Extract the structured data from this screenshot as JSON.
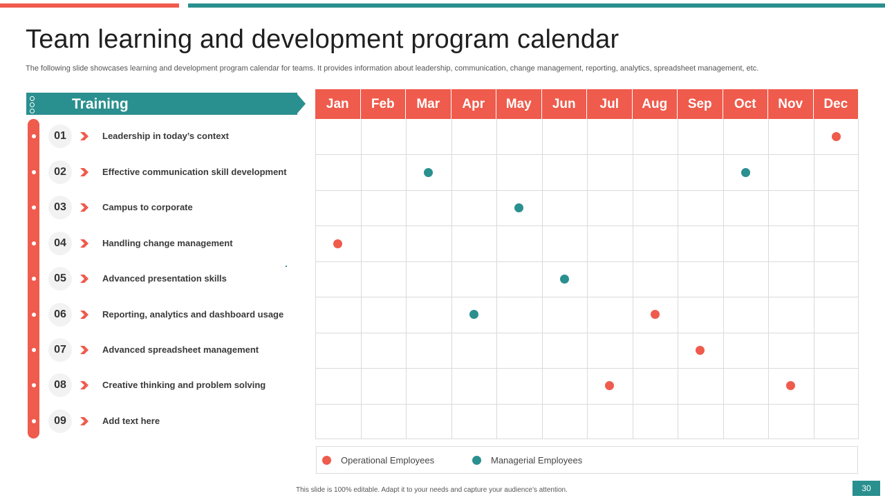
{
  "slide": {
    "title": "Team learning and development program calendar",
    "subtitle": "The following slide showcases learning and development program calendar for teams. It provides information about leadership, communication, change management, reporting, analytics, spreadsheet management, etc.",
    "footer": "This slide is 100% editable.  Adapt it to your needs and capture your audience’s attention.",
    "page_number": "30"
  },
  "colors": {
    "operational": "#EF5B4C",
    "managerial": "#2A8F8F"
  },
  "training": {
    "header": "Training",
    "items": [
      {
        "num": "01",
        "label": "Leadership in today’s context"
      },
      {
        "num": "02",
        "label": "Effective communication skill development"
      },
      {
        "num": "03",
        "label": "Campus to corporate"
      },
      {
        "num": "04",
        "label": "Handling change management"
      },
      {
        "num": "05",
        "label": "Advanced presentation skills"
      },
      {
        "num": "06",
        "label": "Reporting, analytics and dashboard usage"
      },
      {
        "num": "07",
        "label": "Advanced spreadsheet management"
      },
      {
        "num": "08",
        "label": "Creative thinking and problem solving"
      },
      {
        "num": "09",
        "label": "Add text here"
      }
    ]
  },
  "calendar": {
    "months": [
      "Jan",
      "Feb",
      "Mar",
      "Apr",
      "May",
      "Jun",
      "Jul",
      "Aug",
      "Sep",
      "Oct",
      "Nov",
      "Dec"
    ],
    "schedule": [
      {
        "row": 1,
        "month": "Dec",
        "type": "operational"
      },
      {
        "row": 2,
        "month": "Mar",
        "type": "managerial"
      },
      {
        "row": 2,
        "month": "Oct",
        "type": "managerial"
      },
      {
        "row": 3,
        "month": "May",
        "type": "managerial"
      },
      {
        "row": 4,
        "month": "Jan",
        "type": "operational"
      },
      {
        "row": 5,
        "month": "Jun",
        "type": "managerial"
      },
      {
        "row": 6,
        "month": "Apr",
        "type": "managerial"
      },
      {
        "row": 6,
        "month": "Aug",
        "type": "operational"
      },
      {
        "row": 7,
        "month": "Sep",
        "type": "operational"
      },
      {
        "row": 8,
        "month": "Jul",
        "type": "operational"
      },
      {
        "row": 8,
        "month": "Nov",
        "type": "operational"
      }
    ]
  },
  "legend": {
    "operational": "Operational Employees",
    "managerial": "Managerial Employees"
  }
}
